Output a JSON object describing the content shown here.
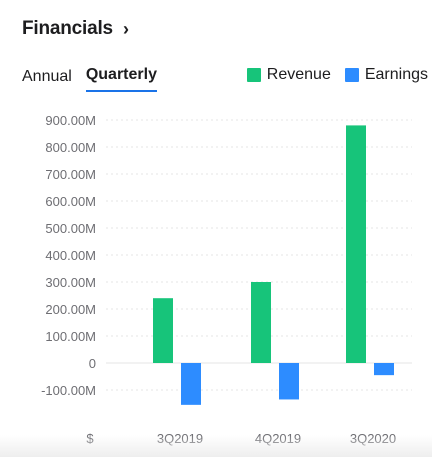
{
  "header": {
    "title": "Financials",
    "chevron": "›"
  },
  "tabs": [
    {
      "label": "Annual",
      "active": false
    },
    {
      "label": "Quarterly",
      "active": true
    }
  ],
  "legend": [
    {
      "label": "Revenue",
      "color": "#17c47a"
    },
    {
      "label": "Earnings",
      "color": "#2d8cff"
    }
  ],
  "chart_data": {
    "type": "bar",
    "categories": [
      "3Q2019",
      "4Q2019",
      "3Q2020"
    ],
    "series": [
      {
        "name": "Revenue",
        "values": [
          240000000,
          300000000,
          880000000
        ],
        "color": "#17c47a"
      },
      {
        "name": "Earnings",
        "values": [
          -155000000,
          -135000000,
          -45000000
        ],
        "color": "#2d8cff"
      }
    ],
    "ylim": [
      -150000000,
      900000000
    ],
    "yticks": [
      900000000,
      800000000,
      700000000,
      600000000,
      500000000,
      400000000,
      300000000,
      200000000,
      100000000,
      0,
      -100000000
    ],
    "ytick_labels": [
      "900.00M",
      "800.00M",
      "700.00M",
      "600.00M",
      "500.00M",
      "400.00M",
      "300.00M",
      "200.00M",
      "100.00M",
      "0",
      "-100.00M"
    ],
    "xlabel": "$",
    "grid": true
  }
}
